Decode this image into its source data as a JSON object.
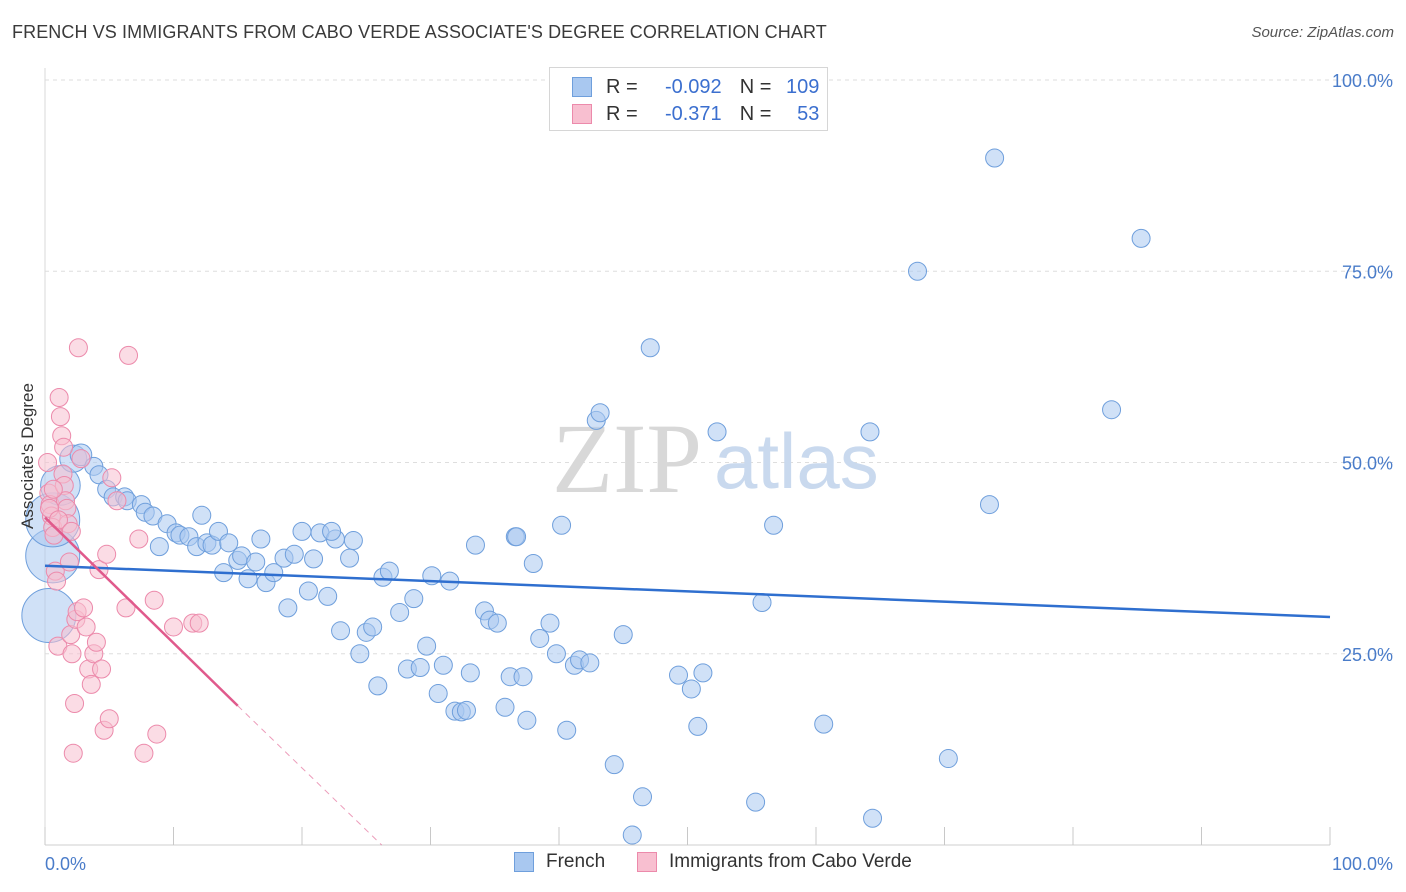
{
  "header": {
    "title": "FRENCH VS IMMIGRANTS FROM CABO VERDE ASSOCIATE'S DEGREE CORRELATION CHART",
    "source": "Source: ZipAtlas.com"
  },
  "watermark": {
    "zip": "ZIP",
    "atlas": "atlas"
  },
  "legend": {
    "rows": [
      {
        "r_label": "R =",
        "r_value": "-0.092",
        "n_label": "N =",
        "n_value": "109"
      },
      {
        "r_label": "R =",
        "r_value": "-0.371",
        "n_label": "N =",
        "n_value": "53"
      }
    ]
  },
  "colors": {
    "french_fill": "#a9c8f0",
    "french_stroke": "#6f9fdc",
    "french_line": "#2f6fcf",
    "cabo_fill": "#f8bfd0",
    "cabo_stroke": "#ec8aab",
    "cabo_line": "#e05a8c",
    "grid": "#dedede",
    "axis_text": "#4a7cc9"
  },
  "chart_data": {
    "type": "scatter",
    "title": "FRENCH VS IMMIGRANTS FROM CABO VERDE ASSOCIATE'S DEGREE CORRELATION CHART",
    "xlabel": "",
    "ylabel": "Associate's Degree",
    "xlim": [
      0,
      100
    ],
    "ylim": [
      0,
      100
    ],
    "x_tick_labels": [
      "0.0%",
      "100.0%"
    ],
    "y_ticks": [
      25,
      50,
      75,
      100
    ],
    "y_tick_labels": [
      "25.0%",
      "50.0%",
      "75.0%",
      "100.0%"
    ],
    "grid": true,
    "legend_position": "bottom-center",
    "series": [
      {
        "name": "French",
        "R": -0.092,
        "N": 109,
        "trend": {
          "x0": 0,
          "y0": 36.5,
          "x1": 100,
          "y1": 29.8
        },
        "points": [
          [
            0.3,
            30.0,
            3
          ],
          [
            0.6,
            37.8,
            3
          ],
          [
            0.6,
            42.5,
            3
          ],
          [
            1.2,
            47.0,
            2.2
          ],
          [
            2.2,
            50.5,
            1.5
          ],
          [
            2.8,
            51.0,
            1.2
          ],
          [
            3.8,
            49.5,
            1
          ],
          [
            4.2,
            48.4,
            1
          ],
          [
            4.8,
            46.5,
            1
          ],
          [
            5.3,
            45.5,
            1
          ],
          [
            6.2,
            45.5,
            1
          ],
          [
            6.4,
            45.0,
            1
          ],
          [
            7.5,
            44.5,
            1
          ],
          [
            7.8,
            43.5,
            1
          ],
          [
            8.4,
            43.0,
            1
          ],
          [
            8.9,
            39.0,
            1
          ],
          [
            9.5,
            42.0,
            1
          ],
          [
            10.2,
            40.8,
            1
          ],
          [
            10.5,
            40.5,
            1
          ],
          [
            11.2,
            40.3,
            1
          ],
          [
            11.8,
            39.0,
            1
          ],
          [
            12.2,
            43.1,
            1
          ],
          [
            12.6,
            39.5,
            1
          ],
          [
            13.0,
            39.2,
            1
          ],
          [
            13.5,
            41.0,
            1
          ],
          [
            13.9,
            35.6,
            1
          ],
          [
            14.3,
            39.5,
            1
          ],
          [
            15.0,
            37.2,
            1
          ],
          [
            15.3,
            37.8,
            1
          ],
          [
            15.8,
            34.8,
            1
          ],
          [
            16.4,
            37.0,
            1
          ],
          [
            16.8,
            40.0,
            1
          ],
          [
            17.2,
            34.3,
            1
          ],
          [
            17.8,
            35.6,
            1
          ],
          [
            18.6,
            37.5,
            1
          ],
          [
            18.9,
            31.0,
            1
          ],
          [
            19.4,
            38.0,
            1
          ],
          [
            20.0,
            41.0,
            1
          ],
          [
            20.5,
            33.2,
            1
          ],
          [
            20.9,
            37.4,
            1
          ],
          [
            21.4,
            40.8,
            1
          ],
          [
            22.0,
            32.5,
            1
          ],
          [
            22.6,
            40.0,
            1
          ],
          [
            23.0,
            28.0,
            1
          ],
          [
            23.7,
            37.5,
            1
          ],
          [
            24.0,
            39.8,
            1
          ],
          [
            24.5,
            25.0,
            1
          ],
          [
            25.0,
            27.8,
            1
          ],
          [
            25.5,
            28.5,
            1
          ],
          [
            25.9,
            20.8,
            1
          ],
          [
            26.3,
            35.0,
            1
          ],
          [
            26.8,
            35.8,
            1
          ],
          [
            27.6,
            30.4,
            1
          ],
          [
            28.2,
            23.0,
            1
          ],
          [
            28.7,
            32.2,
            1
          ],
          [
            29.2,
            23.2,
            1
          ],
          [
            29.7,
            26.0,
            1
          ],
          [
            30.1,
            35.2,
            1
          ],
          [
            30.6,
            19.8,
            1
          ],
          [
            31.0,
            23.5,
            1
          ],
          [
            31.5,
            34.5,
            1
          ],
          [
            31.9,
            17.5,
            1
          ],
          [
            32.4,
            17.4,
            1
          ],
          [
            32.8,
            17.6,
            1
          ],
          [
            33.1,
            22.5,
            1
          ],
          [
            33.5,
            39.2,
            1
          ],
          [
            34.2,
            30.6,
            1
          ],
          [
            34.6,
            29.4,
            1
          ],
          [
            35.2,
            29.0,
            1
          ],
          [
            35.8,
            18.0,
            1
          ],
          [
            36.2,
            22.0,
            1
          ],
          [
            36.6,
            40.3,
            1
          ],
          [
            37.2,
            22.0,
            1
          ],
          [
            37.5,
            16.3,
            1
          ],
          [
            38.0,
            36.8,
            1
          ],
          [
            38.5,
            27.0,
            1
          ],
          [
            39.3,
            29.0,
            1
          ],
          [
            39.8,
            25.0,
            1
          ],
          [
            40.2,
            41.8,
            1
          ],
          [
            40.6,
            15.0,
            1
          ],
          [
            41.2,
            23.5,
            1
          ],
          [
            41.6,
            24.2,
            1
          ],
          [
            42.4,
            23.8,
            1
          ],
          [
            42.9,
            55.5,
            1
          ],
          [
            43.2,
            56.5,
            1
          ],
          [
            44.3,
            10.5,
            1
          ],
          [
            45.0,
            27.5,
            1
          ],
          [
            45.7,
            1.3,
            1
          ],
          [
            46.5,
            6.3,
            1
          ],
          [
            47.1,
            65.0,
            1
          ],
          [
            49.3,
            22.2,
            1
          ],
          [
            50.3,
            20.4,
            1
          ],
          [
            50.8,
            15.5,
            1
          ],
          [
            51.2,
            22.5,
            1
          ],
          [
            52.3,
            54.0,
            1
          ],
          [
            55.3,
            5.6,
            1
          ],
          [
            55.8,
            31.7,
            1
          ],
          [
            56.7,
            41.8,
            1
          ],
          [
            60.6,
            15.8,
            1
          ],
          [
            64.2,
            54.0,
            1
          ],
          [
            64.4,
            3.5,
            1
          ],
          [
            67.9,
            75.0,
            1
          ],
          [
            70.3,
            11.3,
            1
          ],
          [
            73.5,
            44.5,
            1
          ],
          [
            73.9,
            89.8,
            1
          ],
          [
            83.0,
            56.9,
            1
          ],
          [
            85.3,
            79.3,
            1
          ],
          [
            36.7,
            40.3,
            1
          ],
          [
            22.3,
            41.0,
            1
          ]
        ]
      },
      {
        "name": "Immigrants from Cabo Verde",
        "R": -0.371,
        "N": 53,
        "trend": {
          "x0": 0,
          "y0": 42.8,
          "x1": 15.0,
          "y1": 18.2,
          "dash_x1": 26.2,
          "dash_y1": 0
        },
        "points": [
          [
            0.2,
            50.0,
            1
          ],
          [
            0.3,
            46.0,
            1
          ],
          [
            0.4,
            44.5,
            1
          ],
          [
            0.5,
            43.0,
            1
          ],
          [
            0.6,
            41.5,
            1
          ],
          [
            0.7,
            40.5,
            1
          ],
          [
            0.8,
            35.8,
            1
          ],
          [
            0.9,
            34.5,
            1
          ],
          [
            1.0,
            26.0,
            1
          ],
          [
            1.1,
            58.5,
            1
          ],
          [
            1.2,
            56.0,
            1
          ],
          [
            1.3,
            53.5,
            1
          ],
          [
            1.4,
            48.5,
            1
          ],
          [
            1.5,
            47.0,
            1
          ],
          [
            1.6,
            45.0,
            1
          ],
          [
            1.7,
            44.0,
            1
          ],
          [
            1.8,
            42.0,
            1
          ],
          [
            1.9,
            37.0,
            1
          ],
          [
            2.0,
            27.5,
            1
          ],
          [
            2.1,
            25.0,
            1
          ],
          [
            2.2,
            12.0,
            1
          ],
          [
            2.3,
            18.5,
            1
          ],
          [
            2.4,
            29.5,
            1
          ],
          [
            2.5,
            30.5,
            1
          ],
          [
            2.6,
            65.0,
            1
          ],
          [
            2.8,
            50.5,
            1
          ],
          [
            3.0,
            31.0,
            1
          ],
          [
            3.2,
            28.5,
            1
          ],
          [
            3.4,
            23.0,
            1
          ],
          [
            3.6,
            21.0,
            1
          ],
          [
            3.8,
            25.0,
            1
          ],
          [
            4.0,
            26.5,
            1
          ],
          [
            4.2,
            36.0,
            1
          ],
          [
            4.4,
            23.0,
            1
          ],
          [
            4.6,
            15.0,
            1
          ],
          [
            4.8,
            38.0,
            1
          ],
          [
            5.0,
            16.5,
            1
          ],
          [
            5.2,
            48.0,
            1
          ],
          [
            5.6,
            45.0,
            1
          ],
          [
            6.3,
            31.0,
            1
          ],
          [
            6.5,
            64.0,
            1
          ],
          [
            7.3,
            40.0,
            1
          ],
          [
            7.7,
            12.0,
            1
          ],
          [
            8.5,
            32.0,
            1
          ],
          [
            8.7,
            14.5,
            1
          ],
          [
            10.0,
            28.5,
            1
          ],
          [
            11.5,
            29.0,
            1
          ],
          [
            12.0,
            29.0,
            1
          ],
          [
            0.35,
            44.0,
            1
          ],
          [
            0.65,
            46.5,
            1
          ],
          [
            1.05,
            42.5,
            1
          ],
          [
            1.45,
            52.0,
            1
          ],
          [
            2.05,
            41.0,
            1
          ]
        ]
      }
    ]
  },
  "bottom_legend": {
    "items": [
      {
        "label": "French"
      },
      {
        "label": "Immigrants from Cabo Verde"
      }
    ]
  }
}
